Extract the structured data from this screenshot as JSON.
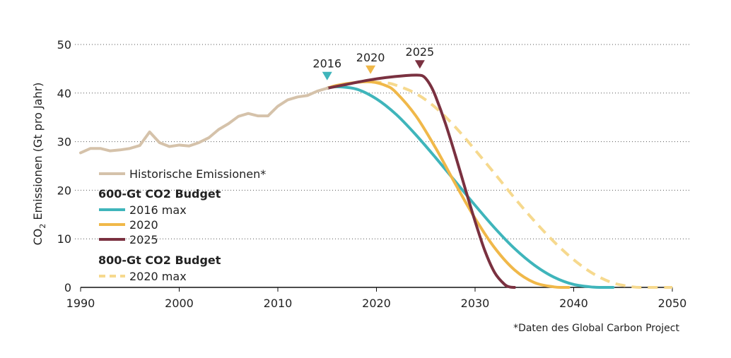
{
  "chart_data": {
    "type": "line",
    "ylabel_prefix": "CO",
    "ylabel_subscript": "2",
    "ylabel_suffix": " Emissionen (Gt pro Jahr)",
    "xlim": [
      1990,
      2050
    ],
    "ylim": [
      0,
      50
    ],
    "x_ticks": [
      1990,
      2000,
      2010,
      2020,
      2030,
      2040,
      2050
    ],
    "y_ticks": [
      0,
      10,
      20,
      30,
      40,
      50
    ],
    "grid": "horizontal-dotted",
    "legend_placement": "lower-left",
    "legend": {
      "historic_label": "Historische Emissionen*",
      "group1_title": "600-Gt CO2 Budget",
      "group2_title": "800-Gt CO2 Budget"
    },
    "markers": [
      {
        "label": "2016",
        "x": 2015,
        "y": 43.5,
        "color": "#3fb5bb"
      },
      {
        "label": "2020",
        "x": 2019.4,
        "y": 44.8,
        "color": "#f0b849"
      },
      {
        "label": "2025",
        "x": 2024.4,
        "y": 45.9,
        "color": "#7a3140"
      }
    ],
    "footnote": "*Daten des Global Carbon Project",
    "series": [
      {
        "name": "Historische Emissionen*",
        "color": "#d5c2aa",
        "dash": false,
        "x": [
          1990,
          1991,
          1992,
          1993,
          1994,
          1995,
          1996,
          1997,
          1998,
          1999,
          2000,
          2001,
          2002,
          2003,
          2004,
          2005,
          2006,
          2007,
          2008,
          2009,
          2010,
          2011,
          2012,
          2013,
          2014,
          2015
        ],
        "y": [
          27.7,
          28.6,
          28.6,
          28.1,
          28.3,
          28.6,
          29.2,
          32.0,
          29.8,
          29.0,
          29.3,
          29.1,
          29.8,
          30.8,
          32.5,
          33.7,
          35.2,
          35.8,
          35.3,
          35.3,
          37.3,
          38.6,
          39.2,
          39.5,
          40.4,
          41.0
        ]
      },
      {
        "name": "2016 max",
        "color": "#3fb5bb",
        "dash": false,
        "x": [
          2015,
          2016,
          2018,
          2020,
          2022,
          2024,
          2026,
          2028,
          2030,
          2032,
          2034,
          2036,
          2038,
          2040,
          2042,
          2043,
          2044
        ],
        "y": [
          41.0,
          41.3,
          40.8,
          38.8,
          35.6,
          31.4,
          26.7,
          21.8,
          16.9,
          12.2,
          8.0,
          4.6,
          2.1,
          0.6,
          0.05,
          0.0,
          0.0
        ]
      },
      {
        "name": "2020",
        "color": "#f0b849",
        "dash": false,
        "x": [
          2015,
          2016,
          2018,
          2019.5,
          2021,
          2022,
          2024,
          2026,
          2028,
          2030,
          2032,
          2034,
          2036,
          2038,
          2039,
          2039.5
        ],
        "y": [
          41.0,
          41.6,
          42.2,
          42.3,
          41.5,
          40.1,
          35.3,
          28.7,
          21.3,
          14.2,
          8.1,
          3.6,
          1.0,
          0.1,
          0.0,
          0.0
        ]
      },
      {
        "name": "2025",
        "color": "#7a3140",
        "dash": false,
        "x": [
          2015,
          2017,
          2019,
          2021,
          2023,
          2024,
          2024.6,
          2025,
          2025.5,
          2026,
          2027,
          2028,
          2029,
          2030,
          2031,
          2032,
          2033,
          2033.5,
          2034
        ],
        "y": [
          41.0,
          41.8,
          42.6,
          43.2,
          43.6,
          43.7,
          43.6,
          43.0,
          41.5,
          39.3,
          33.7,
          27.2,
          20.3,
          13.6,
          7.5,
          3.0,
          0.6,
          0.1,
          0.0
        ]
      },
      {
        "name": "2020 max",
        "color": "#f6d98e",
        "dash": true,
        "x": [
          2019.5,
          2021,
          2022,
          2024,
          2026,
          2028,
          2030,
          2032,
          2034,
          2036,
          2038,
          2040,
          2042,
          2044,
          2046,
          2047,
          2048,
          2050
        ],
        "y": [
          42.3,
          42.1,
          41.6,
          39.9,
          37.0,
          33.0,
          28.3,
          23.4,
          18.4,
          13.7,
          9.4,
          5.7,
          2.8,
          0.9,
          0.1,
          0.0,
          0.0,
          0.0
        ]
      }
    ]
  }
}
